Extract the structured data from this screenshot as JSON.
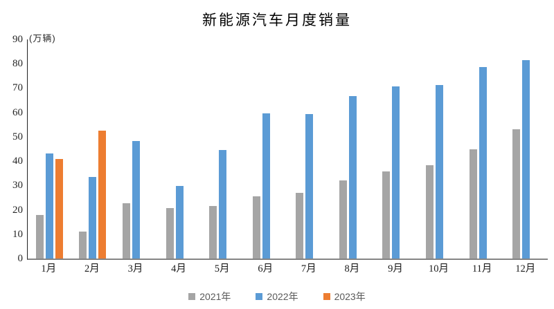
{
  "title": "新能源汽车月度销量",
  "y_axis_unit": "(万辆)",
  "chart_data": {
    "type": "bar",
    "title": "新能源汽车月度销量",
    "ylabel": "(万辆)",
    "xlabel": "",
    "categories": [
      "1月",
      "2月",
      "3月",
      "4月",
      "5月",
      "6月",
      "7月",
      "8月",
      "9月",
      "10月",
      "11月",
      "12月"
    ],
    "series": [
      {
        "name": "2021年",
        "color": "#A5A5A5",
        "values": [
          17.9,
          11.0,
          22.6,
          20.6,
          21.7,
          25.6,
          27.1,
          32.1,
          35.7,
          38.3,
          45.0,
          53.1
        ]
      },
      {
        "name": "2022年",
        "color": "#5B9BD5",
        "values": [
          43.1,
          33.4,
          48.4,
          29.9,
          44.7,
          59.6,
          59.3,
          66.6,
          70.8,
          71.4,
          78.6,
          81.4
        ]
      },
      {
        "name": "2023年",
        "color": "#ED7D31",
        "values": [
          40.8,
          52.5,
          null,
          null,
          null,
          null,
          null,
          null,
          null,
          null,
          null,
          null
        ]
      }
    ],
    "ylim": [
      0,
      90
    ],
    "yticks": [
      0,
      10,
      20,
      30,
      40,
      50,
      60,
      70,
      80,
      90
    ],
    "grid": false,
    "legend_position": "bottom",
    "axis_colors": {
      "y_axis_line": "#1f1f1f",
      "x_axis_line": "#848484",
      "tick_label": "#262626",
      "legend_text": "#595959"
    }
  }
}
